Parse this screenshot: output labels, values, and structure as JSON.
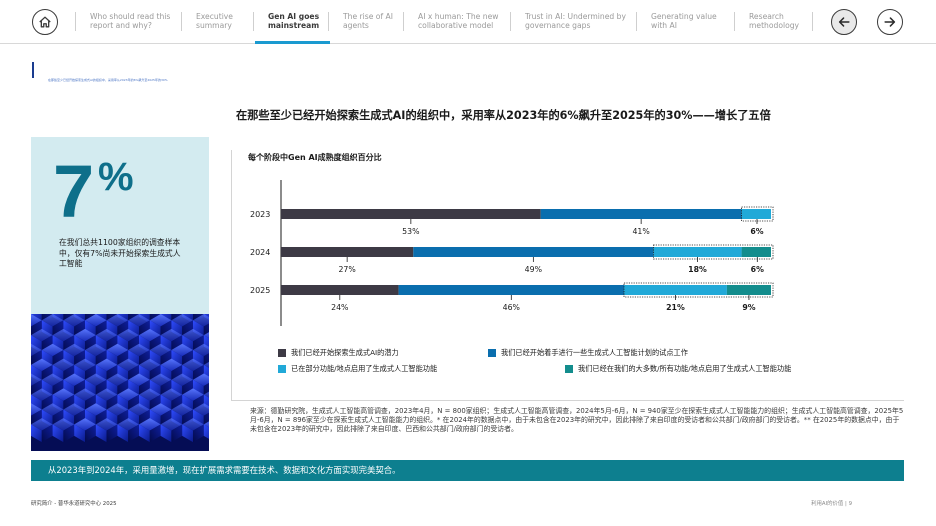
{
  "nav": {
    "items": [
      {
        "label": "Who should read this report and why?"
      },
      {
        "label": "Executive summary"
      },
      {
        "label": "Gen AI goes mainstream",
        "active": true
      },
      {
        "label": "The rise of AI agents"
      },
      {
        "label": "AI x human: The new collaborative model"
      },
      {
        "label": "Trust in AI: Undermined by governance gaps"
      },
      {
        "label": "Generating value with AI"
      },
      {
        "label": "Research methodology"
      }
    ],
    "home_icon": "home-icon",
    "prev_icon": "arrow-left-icon",
    "next_icon": "arrow-right-icon"
  },
  "section_marker": "在那些至少已经开始探索生成式AI的组织中，采用率从2023年的6%飙升至2025年的30%",
  "headline": "在那些至少已经开始探索生成式AI的组织中，采用率从2023年的6%飙升至2025年的30%——增长了五倍",
  "stat": {
    "value": "7",
    "unit": "%",
    "description": "在我们总共1100家组织的调查样本中，仅有7%尚未开始探索生成式人工智能"
  },
  "chart_data": {
    "type": "bar",
    "orientation": "horizontal",
    "stacked": true,
    "title": "每个阶段中Gen AI成熟度组织百分比",
    "categories": [
      "2023",
      "2024",
      "2025"
    ],
    "series": [
      {
        "name": "我们已经开始探索生成式AI的潜力",
        "color": "#3d3a45",
        "values": [
          53,
          27,
          24
        ]
      },
      {
        "name": "我们已经开始着手进行一些生成式人工智能计划的试点工作",
        "color": "#0a6eae",
        "values": [
          41,
          49,
          46
        ]
      },
      {
        "name": "已在部分功能/地点启用了生成式人工智能功能",
        "color": "#21a9d8",
        "values": [
          6,
          18,
          21
        ]
      },
      {
        "name": "我们已经在我们的大多数/所有功能/地点启用了生成式人工智能功能",
        "color": "#138d8d",
        "values": [
          0,
          6,
          9
        ]
      }
    ],
    "data_labels": [
      [
        {
          "series": 0,
          "text": "53%",
          "bold": false
        },
        {
          "series": 1,
          "text": "41%",
          "bold": false
        },
        {
          "series": 2,
          "text": "6%",
          "bold": true
        }
      ],
      [
        {
          "series": 0,
          "text": "27%",
          "bold": false
        },
        {
          "series": 1,
          "text": "49%",
          "bold": false
        },
        {
          "series": 2,
          "text": "18%",
          "bold": true
        },
        {
          "series": 3,
          "text": "6%",
          "bold": true
        }
      ],
      [
        {
          "series": 0,
          "text": "24%",
          "bold": false
        },
        {
          "series": 1,
          "text": "46%",
          "bold": false
        },
        {
          "series": 2,
          "text": "21%",
          "bold": true
        },
        {
          "series": 3,
          "text": "9%",
          "bold": true
        }
      ]
    ],
    "xlim": [
      0,
      100
    ],
    "grid": false
  },
  "source": "来源：德勤研究院，生成式人工智能高管调查，2023年4月，N = 800家组织；生成式人工智能高管调查，2024年5月-6月，N = 940家至少在探索生成式人工智能能力的组织；生成式人工智能高管调查，2025年5月-6月，N = 896家至少在探索生成式人工智能能力的组织。* 在2024年的数据点中，由于未包含在2023年的研究中，因此排除了来自印度的受访者和公共部门/政府部门的受访者。** 在2025年的数据点中，由于未包含在2023年的研究中，因此排除了来自印度、巴西和公共部门/政府部门的受访者。",
  "banner": "从2023年到2024年，采用量激增，现在扩展需求需要在技术、数据和文化方面实现完美契合。",
  "footer": {
    "left": "研究简介 - 普华永道研究中心 2025",
    "right": "利用AI的价值 | 9"
  }
}
